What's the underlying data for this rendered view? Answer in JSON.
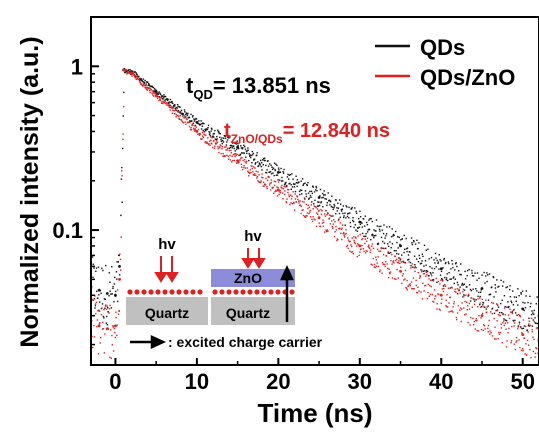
{
  "chart_data": {
    "type": "scatter",
    "title": "",
    "xlabel": "Time (ns)",
    "ylabel": "Normalized intensity (a.u.)",
    "xlim": [
      -3,
      52
    ],
    "ylim": [
      0.015,
      2.0
    ],
    "yscale": "log",
    "grid": false,
    "legend_position": "top-right",
    "x_ticks": [
      0,
      10,
      20,
      30,
      40,
      50
    ],
    "x_tick_labels": [
      "0",
      "10",
      "20",
      "30",
      "40",
      "50"
    ],
    "y_ticks": [
      1,
      0.1
    ],
    "y_tick_labels": [
      "1",
      "0.1"
    ],
    "series": [
      {
        "name": "QDs",
        "color": "#111111",
        "lifetime_ns": 13.851,
        "points": [
          [
            -3,
            0.045
          ],
          [
            -2,
            0.043
          ],
          [
            -1,
            0.041
          ],
          [
            0,
            0.04
          ],
          [
            0.5,
            0.06
          ],
          [
            1,
            0.95
          ],
          [
            2,
            0.93
          ],
          [
            5,
            0.7
          ],
          [
            10,
            0.455
          ],
          [
            15,
            0.32
          ],
          [
            20,
            0.225
          ],
          [
            25,
            0.158
          ],
          [
            30,
            0.112
          ],
          [
            35,
            0.08
          ],
          [
            40,
            0.058
          ],
          [
            45,
            0.044
          ],
          [
            50,
            0.033
          ],
          [
            52,
            0.03
          ]
        ]
      },
      {
        "name": "QDs/ZnO",
        "color": "#e02020",
        "lifetime_ns": 12.84,
        "points": [
          [
            -3,
            0.028
          ],
          [
            -2,
            0.026
          ],
          [
            -1,
            0.025
          ],
          [
            0,
            0.026
          ],
          [
            0.5,
            0.05
          ],
          [
            1,
            0.95
          ],
          [
            2,
            0.9
          ],
          [
            5,
            0.66
          ],
          [
            10,
            0.4
          ],
          [
            15,
            0.265
          ],
          [
            20,
            0.176
          ],
          [
            25,
            0.119
          ],
          [
            30,
            0.08
          ],
          [
            35,
            0.056
          ],
          [
            40,
            0.04
          ],
          [
            45,
            0.03
          ],
          [
            50,
            0.023
          ],
          [
            52,
            0.021
          ]
        ]
      }
    ],
    "annotations": {
      "tau_qd": {
        "symbol": "t",
        "subscript": "QD",
        "value": "= 13.851 ns"
      },
      "tau_zno": {
        "symbol": "t",
        "subscript": "ZnO/QDs",
        "value": "= 12.840 ns"
      }
    },
    "inset": {
      "hv_label": "hv",
      "zno_label": "ZnO",
      "substrate_label": "Quartz",
      "arrow_caption": ": excited charge carrier",
      "colors": {
        "arrow": "#e02020",
        "dots": "#e02020",
        "zno": "#8c8cd8",
        "substrate": "#c0c0c0"
      }
    }
  }
}
